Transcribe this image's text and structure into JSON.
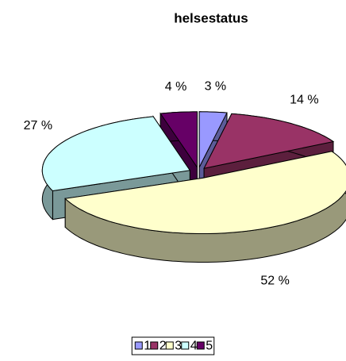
{
  "chart_data": {
    "type": "pie3d",
    "title": "helsestatus",
    "categories": [
      "1",
      "2",
      "3",
      "4",
      "5"
    ],
    "values": [
      3,
      14,
      52,
      27,
      4
    ],
    "value_labels": [
      "3 %",
      "14 %",
      "52 %",
      "27 %",
      "4 %"
    ],
    "colors": [
      "#9999ff",
      "#993366",
      "#ffffcc",
      "#ccffff",
      "#660066"
    ],
    "legend": "bottom"
  }
}
